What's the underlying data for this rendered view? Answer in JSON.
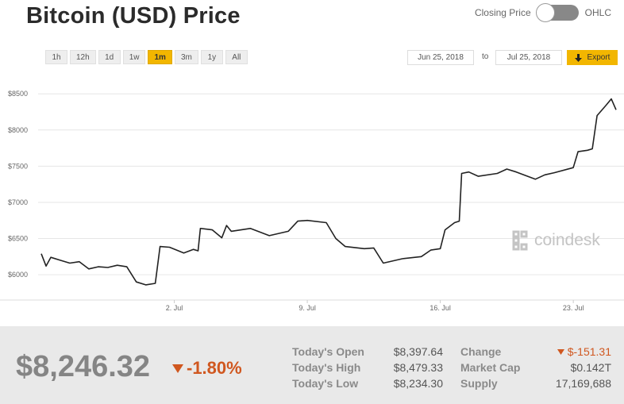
{
  "header": {
    "title": "Bitcoin (USD) Price",
    "toggle_left_label": "Closing Price",
    "toggle_right_label": "OHLC"
  },
  "ranges": [
    {
      "label": "1h",
      "active": false
    },
    {
      "label": "12h",
      "active": false
    },
    {
      "label": "1d",
      "active": false
    },
    {
      "label": "1w",
      "active": false
    },
    {
      "label": "1m",
      "active": true
    },
    {
      "label": "3m",
      "active": false
    },
    {
      "label": "1y",
      "active": false
    },
    {
      "label": "All",
      "active": false
    }
  ],
  "date_range": {
    "from": "Jun 25, 2018",
    "to_label": "to",
    "to": "Jul 25, 2018",
    "export_label": "Export"
  },
  "watermark": "coindesk",
  "colors": {
    "accent": "#f2b600",
    "line": "#222222",
    "negative": "#d0571f"
  },
  "chart_data": {
    "type": "line",
    "title": "",
    "xlabel": "",
    "ylabel": "",
    "ylim": [
      5650,
      8700
    ],
    "yticks": [
      6000,
      6500,
      7000,
      7500,
      8000,
      8500
    ],
    "ytick_labels": [
      "$6000",
      "$6500",
      "$7000",
      "$7500",
      "$8000",
      "$8500"
    ],
    "xticks": [
      "2018-07-02",
      "2018-07-09",
      "2018-07-16",
      "2018-07-23"
    ],
    "xtick_labels": [
      "2. Jul",
      "9. Jul",
      "16. Jul",
      "23. Jul"
    ],
    "grid": true,
    "series": [
      {
        "points": [
          [
            "2018-06-25",
            6290
          ],
          [
            "2018-06-25 06:00",
            6120
          ],
          [
            "2018-06-25 12:00",
            6240
          ],
          [
            "2018-06-26",
            6200
          ],
          [
            "2018-06-26 12:00",
            6160
          ],
          [
            "2018-06-27",
            6180
          ],
          [
            "2018-06-27 12:00",
            6080
          ],
          [
            "2018-06-28",
            6110
          ],
          [
            "2018-06-28 12:00",
            6100
          ],
          [
            "2018-06-29",
            6130
          ],
          [
            "2018-06-29 12:00",
            6110
          ],
          [
            "2018-06-30",
            5900
          ],
          [
            "2018-06-30 12:00",
            5860
          ],
          [
            "2018-07-01",
            5880
          ],
          [
            "2018-07-01 06:00",
            6390
          ],
          [
            "2018-07-01 18:00",
            6380
          ],
          [
            "2018-07-02 12:00",
            6300
          ],
          [
            "2018-07-03",
            6350
          ],
          [
            "2018-07-03 06:00",
            6330
          ],
          [
            "2018-07-03 09:00",
            6640
          ],
          [
            "2018-07-04",
            6620
          ],
          [
            "2018-07-04 12:00",
            6510
          ],
          [
            "2018-07-04 18:00",
            6680
          ],
          [
            "2018-07-05",
            6600
          ],
          [
            "2018-07-06",
            6640
          ],
          [
            "2018-07-07",
            6540
          ],
          [
            "2018-07-08",
            6600
          ],
          [
            "2018-07-08 12:00",
            6740
          ],
          [
            "2018-07-09",
            6750
          ],
          [
            "2018-07-10",
            6720
          ],
          [
            "2018-07-10 12:00",
            6500
          ],
          [
            "2018-07-11",
            6390
          ],
          [
            "2018-07-12",
            6360
          ],
          [
            "2018-07-12 12:00",
            6370
          ],
          [
            "2018-07-13",
            6160
          ],
          [
            "2018-07-14",
            6220
          ],
          [
            "2018-07-15",
            6250
          ],
          [
            "2018-07-15 12:00",
            6340
          ],
          [
            "2018-07-16",
            6360
          ],
          [
            "2018-07-16 06:00",
            6620
          ],
          [
            "2018-07-16 18:00",
            6720
          ],
          [
            "2018-07-17",
            6740
          ],
          [
            "2018-07-17 03:00",
            7400
          ],
          [
            "2018-07-17 12:00",
            7420
          ],
          [
            "2018-07-18",
            7360
          ],
          [
            "2018-07-19",
            7400
          ],
          [
            "2018-07-19 12:00",
            7460
          ],
          [
            "2018-07-20",
            7420
          ],
          [
            "2018-07-21",
            7320
          ],
          [
            "2018-07-21 12:00",
            7380
          ],
          [
            "2018-07-22",
            7410
          ],
          [
            "2018-07-23",
            7480
          ],
          [
            "2018-07-23 06:00",
            7700
          ],
          [
            "2018-07-23 18:00",
            7720
          ],
          [
            "2018-07-24",
            7740
          ],
          [
            "2018-07-24 06:00",
            8200
          ],
          [
            "2018-07-24 18:00",
            8350
          ],
          [
            "2018-07-25",
            8430
          ],
          [
            "2018-07-25 06:00",
            8280
          ]
        ]
      }
    ]
  },
  "footer": {
    "price": "$8,246.32",
    "change_pct": "-1.80%",
    "stats_left": [
      {
        "label": "Today's Open",
        "value": "$8,397.64"
      },
      {
        "label": "Today's High",
        "value": "$8,479.33"
      },
      {
        "label": "Today's Low",
        "value": "$8,234.30"
      }
    ],
    "stats_right": [
      {
        "label": "Change",
        "value": "$-151.31"
      },
      {
        "label": "Market Cap",
        "value": "$0.142T"
      },
      {
        "label": "Supply",
        "value": "17,169,688"
      }
    ]
  }
}
